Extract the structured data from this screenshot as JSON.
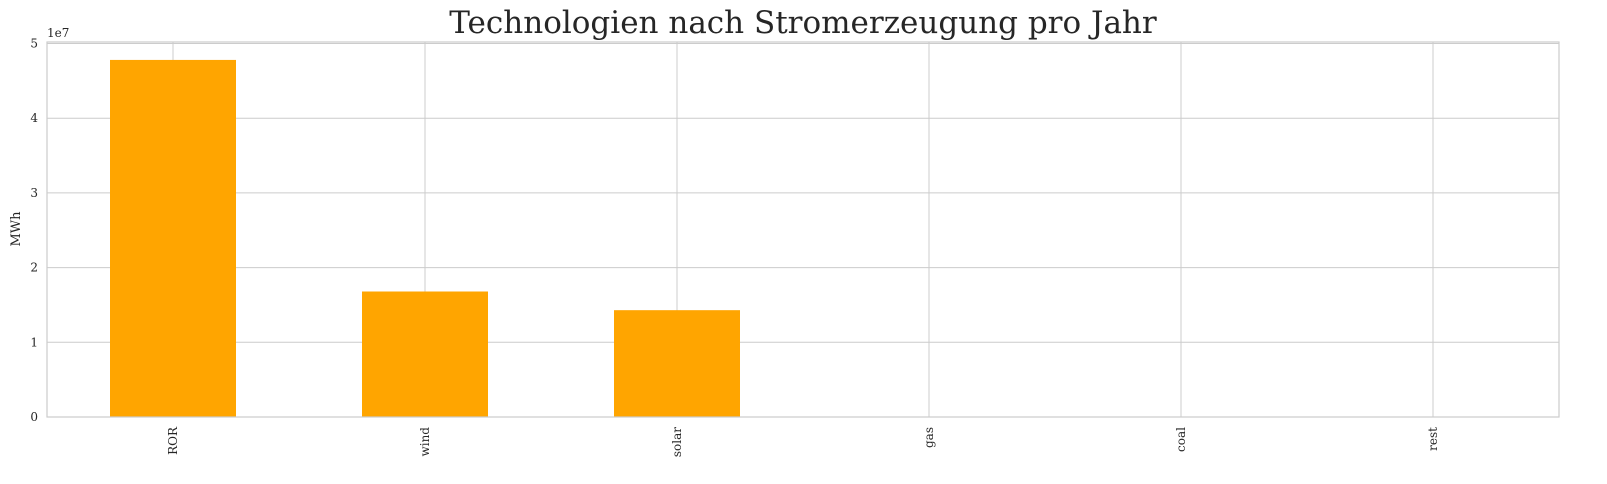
{
  "chart_data": {
    "type": "bar",
    "title": "Technologien nach Stromerzeugung pro Jahr",
    "xlabel": "",
    "ylabel": "MWh",
    "y_offset_label": "1e7",
    "y_scale": 10000000,
    "categories": [
      "ROR",
      "wind",
      "solar",
      "gas",
      "coal",
      "rest"
    ],
    "values": [
      47800000,
      16800000,
      14300000,
      0,
      0,
      0
    ],
    "yticks": [
      0,
      1,
      2,
      3,
      4,
      5
    ],
    "ylim": [
      0,
      50200000
    ],
    "grid": true,
    "legend": "none",
    "bar_color": "#ffa500",
    "grid_color": "#cccccc",
    "spine_color": "#cccccc"
  }
}
